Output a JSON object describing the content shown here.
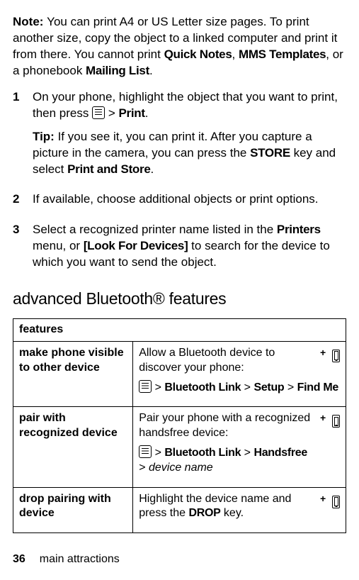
{
  "note": {
    "label": "Note: ",
    "part1": "You can print A4 or US Letter size pages. To print another size, copy the object to a linked computer and print it from there. You cannot print ",
    "qn": "Quick Notes",
    "sep1": ", ",
    "mms": "MMS Templates",
    "sep2": ", or a phonebook ",
    "ml": "Mailing List",
    "end": "."
  },
  "steps": {
    "s1": {
      "num": "1",
      "a": "On your phone, highlight the object that you want to print, then press ",
      "gt": " > ",
      "print": "Print",
      "end": ".",
      "tiplabel": "Tip: ",
      "tip_a": "If you see it, you can print it. After you capture a picture in the camera, you can press the ",
      "store": "STORE",
      "tip_b": " key and select ",
      "pas": "Print and Store",
      "tipend": "."
    },
    "s2": {
      "num": "2",
      "text": "If available, choose additional objects or print options."
    },
    "s3": {
      "num": "3",
      "a": "Select a recognized printer name listed in the ",
      "printers": "Printers",
      "b": " menu, or ",
      "look": "[Look For Devices]",
      "c": " to search for the device to which you want to send the object."
    }
  },
  "section_title": "advanced Bluetooth® features",
  "table": {
    "header": "features",
    "r1": {
      "feat": "make phone visible to other device",
      "desc": "Allow a Bluetooth device to discover your phone:",
      "gt1": " > ",
      "bl": "Bluetooth Link",
      "gt2": " > ",
      "setup": "Setup",
      "gt3": " > ",
      "findme": "Find Me"
    },
    "r2": {
      "feat": "pair with recognized device",
      "desc": "Pair your phone with a recognized handsfree device:",
      "gt1": " > ",
      "bl": "Bluetooth Link",
      "gt2": " > ",
      "hf": "Handsfree",
      "gt3": " > ",
      "dn": "device name"
    },
    "r3": {
      "feat": "drop pairing with device",
      "a": "Highlight the device name and press the ",
      "drop": "DROP",
      "b": " key."
    }
  },
  "footer": {
    "page": "36",
    "label": "main attractions"
  }
}
